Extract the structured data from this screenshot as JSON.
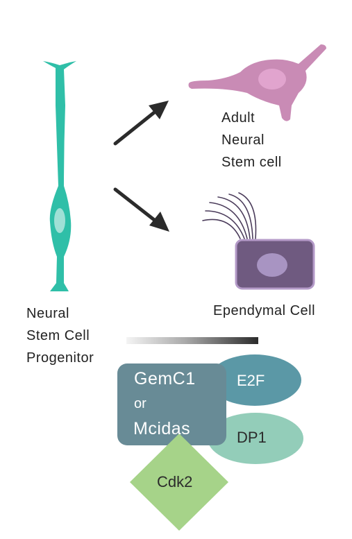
{
  "labels": {
    "adult": [
      "Adult",
      "Neural",
      "Stem cell"
    ],
    "ependymal": "Ependymal Cell",
    "progenitor": [
      "Neural",
      "Stem Cell",
      "Progenitor"
    ]
  },
  "complex": {
    "gemc1": "GemC1",
    "or": "or",
    "mcidas": "Mcidas",
    "e2f": "E2F",
    "dp1": "DP1",
    "cdk2": "Cdk2"
  },
  "colors": {
    "stem": "#2fbfa8",
    "stem_nucleus": "#9fe0d6",
    "adult_cell": "#c98bb5",
    "adult_nucleus": "#e1a4ce",
    "ependymal_cell": "#6f5a80",
    "ependymal_nucleus": "#a894c2",
    "cilia": "#4a3b5a",
    "arrow": "#2b2b2b",
    "gemc1_box": "#688b96",
    "e2f": "#5b98a6",
    "dp1": "#93cdb9",
    "cdk2": "#a6d389"
  }
}
